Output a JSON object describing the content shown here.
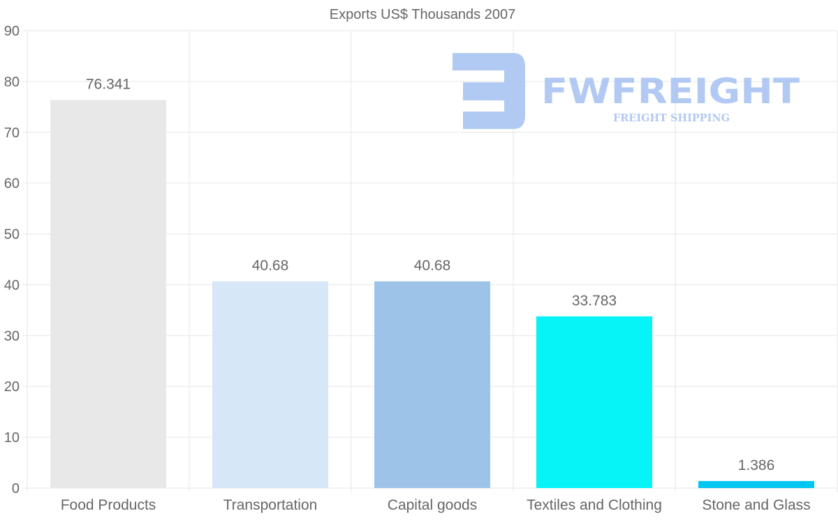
{
  "watermark": {
    "brand": "FWFREIGHT",
    "tagline": "FREIGHT SHIPPING",
    "color": "#a9c4f2"
  },
  "chart_data": {
    "type": "bar",
    "title": "Exports US$ Thousands 2007",
    "categories": [
      "Food Products",
      "Transportation",
      "Capital goods",
      "Textiles and Clothing",
      "Stone and Glass"
    ],
    "values": [
      76.341,
      40.68,
      40.68,
      33.783,
      1.386
    ],
    "data_labels": [
      "76.341",
      "40.68",
      "40.68",
      "33.783",
      "1.386"
    ],
    "colors": [
      "#e8e8e8",
      "#d6e7f8",
      "#9dc4e8",
      "#06f4f7",
      "#00c6f2"
    ],
    "ylim": [
      0,
      90
    ],
    "yticks": [
      0,
      10,
      20,
      30,
      40,
      50,
      60,
      70,
      80,
      90
    ],
    "xlabel": "",
    "ylabel": "",
    "grid": true,
    "legend": "none"
  }
}
